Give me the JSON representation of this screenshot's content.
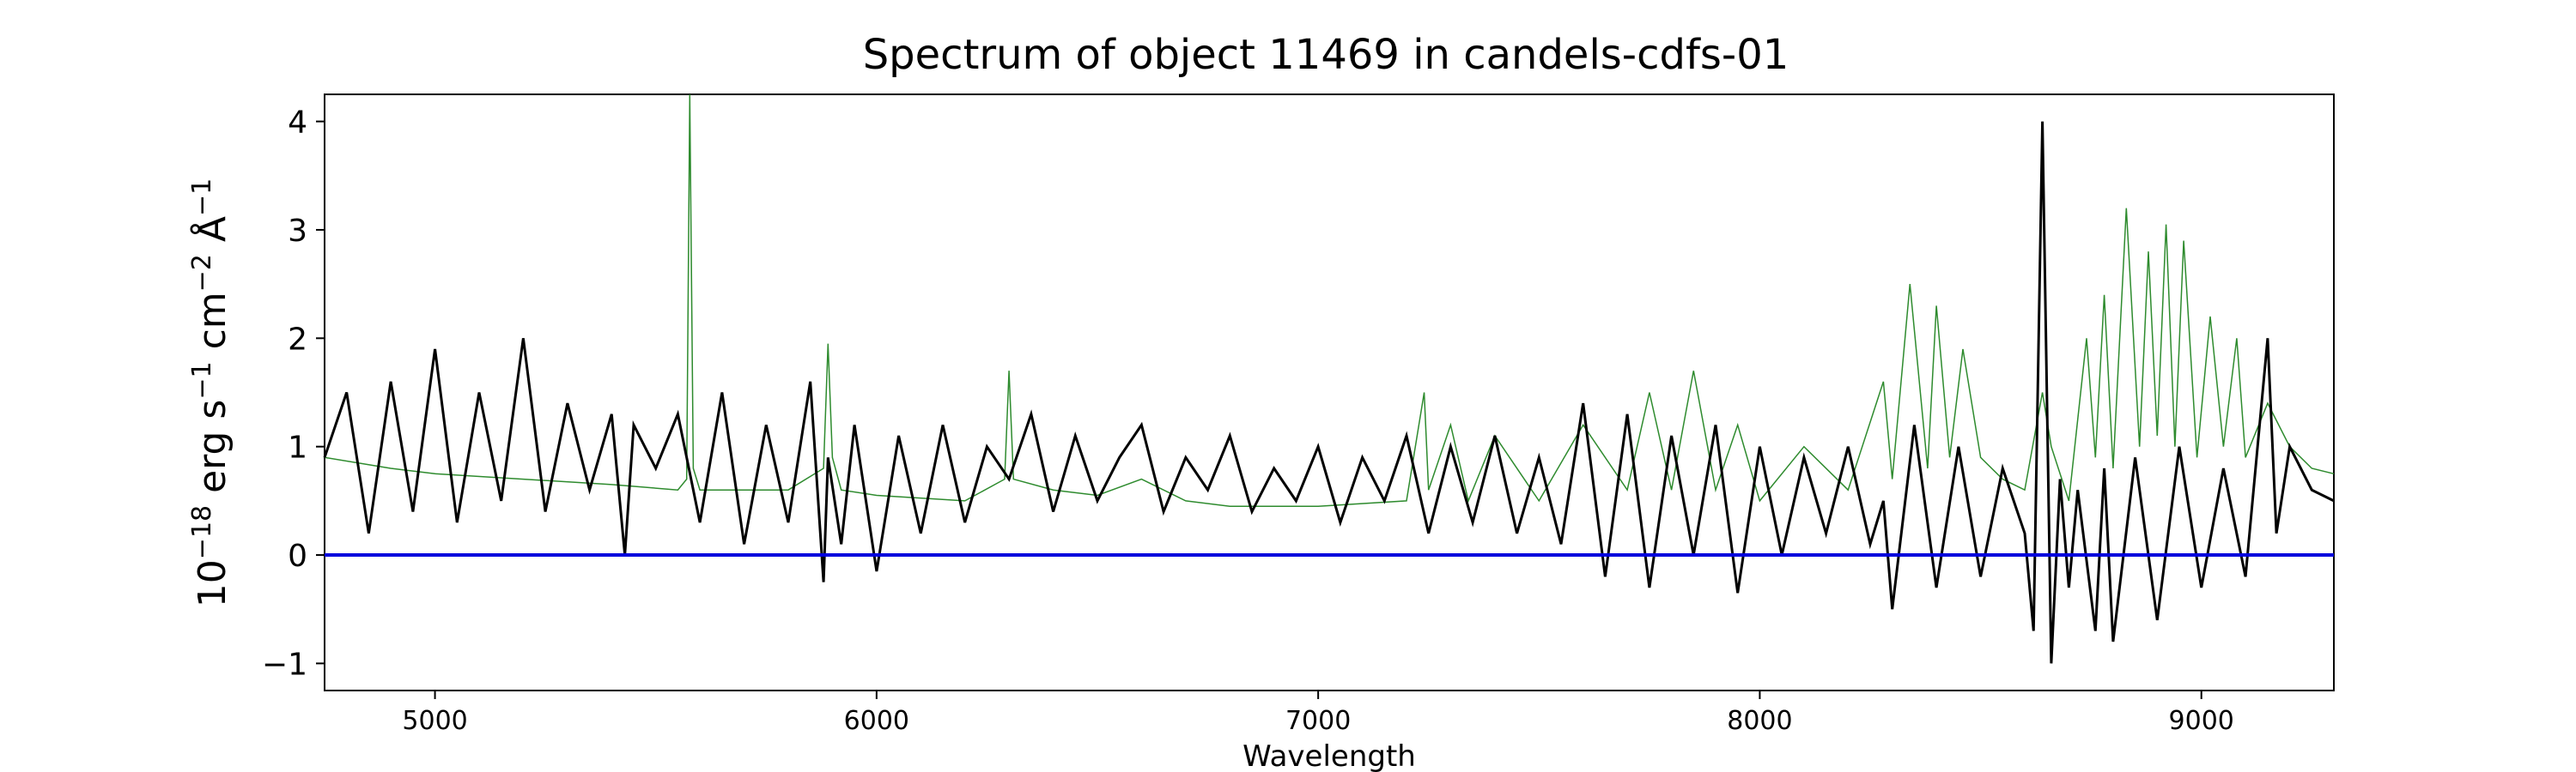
{
  "chart_data": {
    "type": "line",
    "title": "Spectrum of object 11469 in candels-cdfs-01",
    "xlabel": "Wavelength",
    "ylabel_parts": [
      "10",
      "−18",
      " erg s",
      "−1",
      " cm",
      "−2",
      " Å",
      "−1"
    ],
    "xlim": [
      4750,
      9300
    ],
    "ylim": [
      -1.25,
      4.25
    ],
    "xticks": [
      5000,
      6000,
      7000,
      8000,
      9000
    ],
    "xtick_labels": [
      "5000",
      "6000",
      "7000",
      "8000",
      "9000"
    ],
    "yticks": [
      -1,
      0,
      1,
      2,
      3,
      4
    ],
    "ytick_labels": [
      "−1",
      "0",
      "1",
      "2",
      "3",
      "4"
    ],
    "grid": false,
    "colors": {
      "flux": "#000000",
      "sky": "#2e8b2e",
      "zero": "#0000dd"
    },
    "zero_line": 0,
    "series": [
      {
        "role": "sky",
        "x": [
          4750,
          4900,
          5000,
          5200,
          5400,
          5550,
          5570,
          5577,
          5585,
          5600,
          5800,
          5880,
          5890,
          5900,
          5920,
          6000,
          6200,
          6290,
          6300,
          6310,
          6400,
          6500,
          6600,
          6700,
          6800,
          7000,
          7200,
          7240,
          7250,
          7300,
          7340,
          7400,
          7500,
          7600,
          7700,
          7750,
          7800,
          7850,
          7900,
          7950,
          8000,
          8100,
          8200,
          8280,
          8300,
          8340,
          8380,
          8400,
          8430,
          8460,
          8500,
          8550,
          8600,
          8640,
          8660,
          8700,
          8740,
          8760,
          8780,
          8800,
          8830,
          8860,
          8880,
          8900,
          8920,
          8940,
          8960,
          8990,
          9020,
          9050,
          9080,
          9100,
          9150,
          9200,
          9250,
          9300
        ],
        "y": [
          0.9,
          0.8,
          0.75,
          0.7,
          0.65,
          0.6,
          0.7,
          4.25,
          0.8,
          0.6,
          0.6,
          0.8,
          1.95,
          0.9,
          0.6,
          0.55,
          0.5,
          0.7,
          1.7,
          0.7,
          0.6,
          0.55,
          0.7,
          0.5,
          0.45,
          0.45,
          0.5,
          1.5,
          0.6,
          1.2,
          0.5,
          1.1,
          0.5,
          1.2,
          0.6,
          1.5,
          0.6,
          1.7,
          0.6,
          1.2,
          0.5,
          1.0,
          0.6,
          1.6,
          0.7,
          2.5,
          0.8,
          2.3,
          0.9,
          1.9,
          0.9,
          0.7,
          0.6,
          1.5,
          1.0,
          0.5,
          2.0,
          0.9,
          2.4,
          0.8,
          3.2,
          1.0,
          2.8,
          1.1,
          3.05,
          1.0,
          2.9,
          0.9,
          2.2,
          1.0,
          2.0,
          0.9,
          1.4,
          1.0,
          0.8,
          0.75
        ]
      },
      {
        "role": "flux",
        "x": [
          4750,
          4800,
          4850,
          4900,
          4950,
          5000,
          5050,
          5100,
          5150,
          5200,
          5250,
          5300,
          5350,
          5400,
          5430,
          5450,
          5500,
          5550,
          5600,
          5650,
          5700,
          5750,
          5800,
          5850,
          5880,
          5890,
          5920,
          5950,
          6000,
          6050,
          6100,
          6150,
          6200,
          6250,
          6300,
          6350,
          6400,
          6450,
          6500,
          6550,
          6600,
          6650,
          6700,
          6750,
          6800,
          6850,
          6900,
          6950,
          7000,
          7050,
          7100,
          7150,
          7200,
          7250,
          7300,
          7350,
          7400,
          7450,
          7500,
          7550,
          7600,
          7650,
          7700,
          7750,
          7800,
          7850,
          7900,
          7950,
          8000,
          8050,
          8100,
          8150,
          8200,
          8250,
          8280,
          8300,
          8350,
          8400,
          8450,
          8500,
          8550,
          8600,
          8620,
          8640,
          8660,
          8680,
          8700,
          8720,
          8760,
          8780,
          8800,
          8850,
          8900,
          8950,
          9000,
          9050,
          9100,
          9150,
          9170,
          9200,
          9250,
          9300
        ],
        "y": [
          0.9,
          1.5,
          0.2,
          1.6,
          0.4,
          1.9,
          0.3,
          1.5,
          0.5,
          2.0,
          0.4,
          1.4,
          0.6,
          1.3,
          0.0,
          1.2,
          0.8,
          1.3,
          0.3,
          1.5,
          0.1,
          1.2,
          0.3,
          1.6,
          -0.25,
          0.9,
          0.1,
          1.2,
          -0.15,
          1.1,
          0.2,
          1.2,
          0.3,
          1.0,
          0.7,
          1.3,
          0.4,
          1.1,
          0.5,
          0.9,
          1.2,
          0.4,
          0.9,
          0.6,
          1.1,
          0.4,
          0.8,
          0.5,
          1.0,
          0.3,
          0.9,
          0.5,
          1.1,
          0.2,
          1.0,
          0.3,
          1.1,
          0.2,
          0.9,
          0.1,
          1.4,
          -0.2,
          1.3,
          -0.3,
          1.1,
          0.0,
          1.2,
          -0.35,
          1.0,
          0.0,
          0.9,
          0.2,
          1.0,
          0.1,
          0.5,
          -0.5,
          1.2,
          -0.3,
          1.0,
          -0.2,
          0.8,
          0.2,
          -0.7,
          4.0,
          -1.0,
          0.7,
          -0.3,
          0.6,
          -0.7,
          0.8,
          -0.8,
          0.9,
          -0.6,
          1.0,
          -0.3,
          0.8,
          -0.2,
          2.0,
          0.2,
          1.0,
          0.6,
          0.5
        ]
      }
    ]
  }
}
